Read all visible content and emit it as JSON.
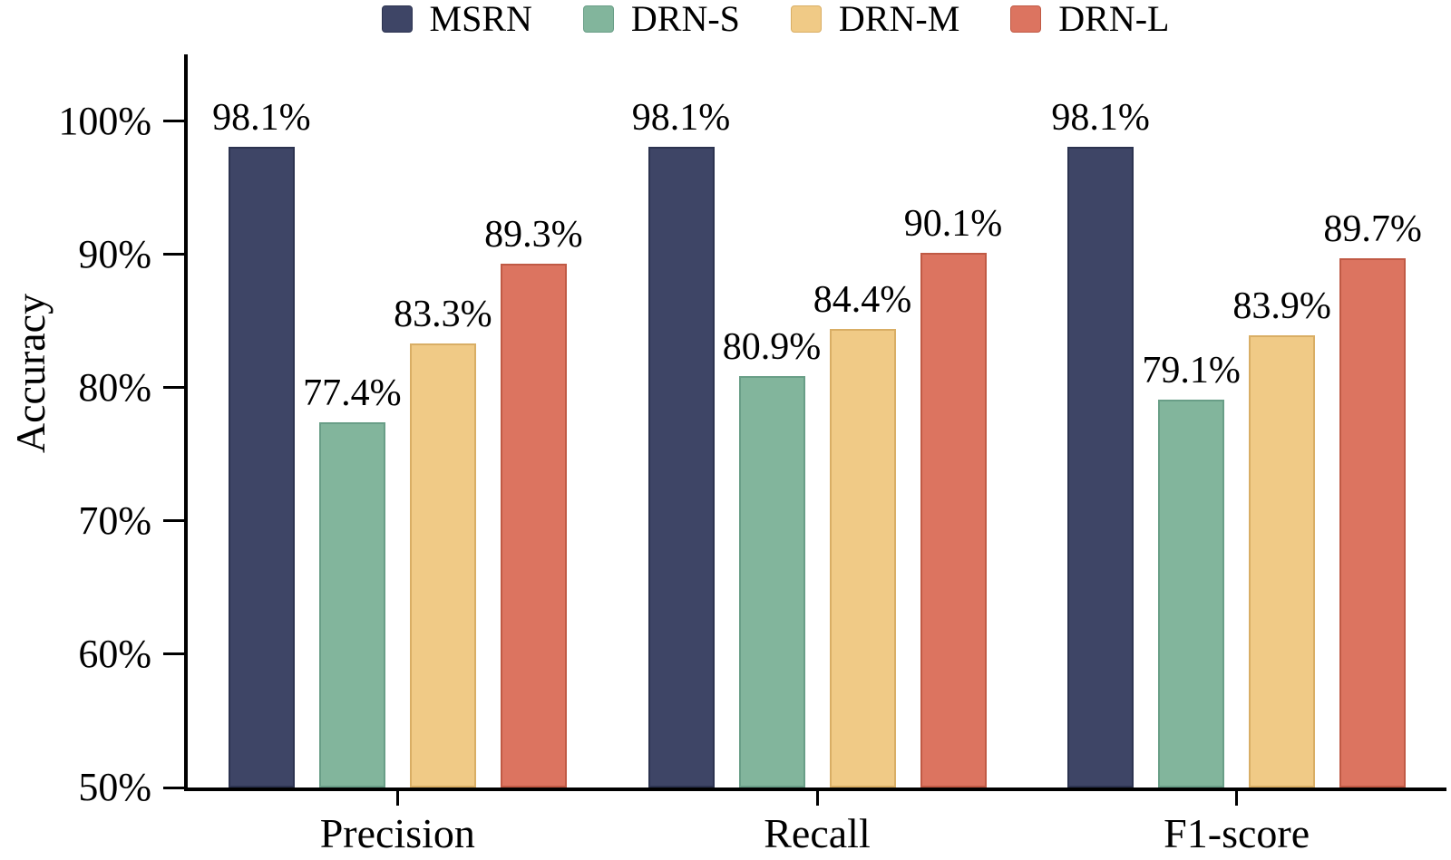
{
  "chart_data": {
    "type": "bar",
    "title": "",
    "xlabel": "",
    "ylabel": "Accuracy",
    "ylim": [
      50,
      105
    ],
    "grid": false,
    "legend_position": "top",
    "background": "#ffffff",
    "axis_color": "#000000",
    "y_ticks": [
      {
        "value": 100,
        "label": "100%"
      },
      {
        "value": 90,
        "label": "90%"
      },
      {
        "value": 80,
        "label": "80%"
      },
      {
        "value": 70,
        "label": "70%"
      },
      {
        "value": 60,
        "label": "60%"
      },
      {
        "value": 50,
        "label": "50%"
      }
    ],
    "categories": [
      "Precision",
      "Recall",
      "F1-score"
    ],
    "series": [
      {
        "name": "MSRN",
        "color": "#3e4566",
        "edge_color": "#2c3350",
        "values": [
          98.1,
          98.1,
          98.1
        ],
        "labels": [
          "98.1%",
          "98.1%",
          "98.1%"
        ]
      },
      {
        "name": "DRN-S",
        "color": "#82b59c",
        "edge_color": "#699e87",
        "values": [
          77.4,
          80.9,
          79.1
        ],
        "labels": [
          "77.4%",
          "80.9%",
          "79.1%"
        ]
      },
      {
        "name": "DRN-M",
        "color": "#f0ca86",
        "edge_color": "#d9ae65",
        "values": [
          83.3,
          84.4,
          83.9
        ],
        "labels": [
          "83.3%",
          "84.4%",
          "83.9%"
        ]
      },
      {
        "name": "DRN-L",
        "color": "#dc7460",
        "edge_color": "#c05a45",
        "values": [
          89.3,
          90.1,
          89.7
        ],
        "labels": [
          "89.3%",
          "90.1%",
          "89.7%"
        ]
      }
    ]
  }
}
